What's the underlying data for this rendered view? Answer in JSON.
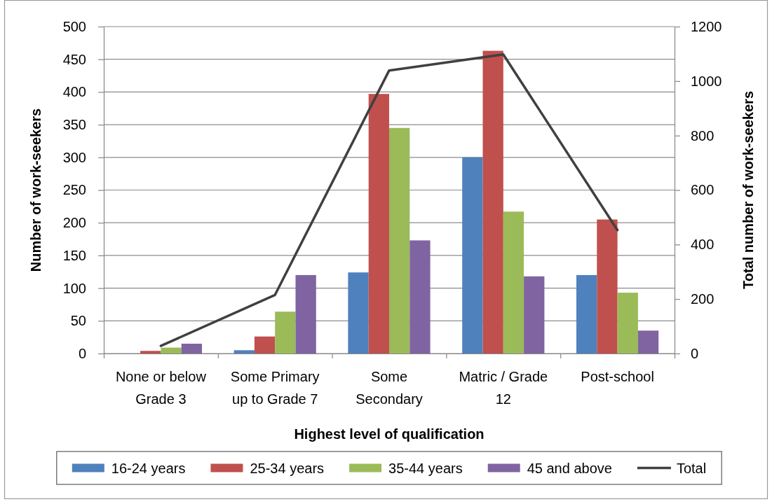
{
  "chart_data": {
    "type": "bar",
    "xlabel": "Highest level of qualification",
    "ylabel": "Number of work-seekers",
    "y2label": "Total number of work-seekers",
    "categories": [
      "None or below Grade 3",
      "Some Primary up to Grade 7",
      "Some Secondary",
      "Matric / Grade 12",
      "Post-school"
    ],
    "series": [
      {
        "name": "16-24 years",
        "color": "#4f81bd",
        "values": [
          null,
          5,
          124,
          300,
          120
        ]
      },
      {
        "name": "25-34 years",
        "color": "#c0504d",
        "values": [
          4,
          26,
          397,
          463,
          205
        ]
      },
      {
        "name": "35-44 years",
        "color": "#9bbb59",
        "values": [
          9,
          64,
          345,
          217,
          93
        ]
      },
      {
        "name": "45 and above",
        "color": "#8064a2",
        "values": [
          15,
          120,
          173,
          118,
          35
        ]
      },
      {
        "name": "Total",
        "type": "line",
        "axis": "y2",
        "color": "#404040",
        "values": [
          28,
          215,
          1039,
          1098,
          453
        ]
      }
    ],
    "ylim": [
      0,
      500
    ],
    "yticks": [
      0,
      50,
      100,
      150,
      200,
      250,
      300,
      350,
      400,
      450,
      500
    ],
    "y2lim": [
      0,
      1200
    ],
    "y2ticks": [
      0,
      200,
      400,
      600,
      800,
      1000,
      1200
    ],
    "grid": "y",
    "legend": "bottom"
  }
}
